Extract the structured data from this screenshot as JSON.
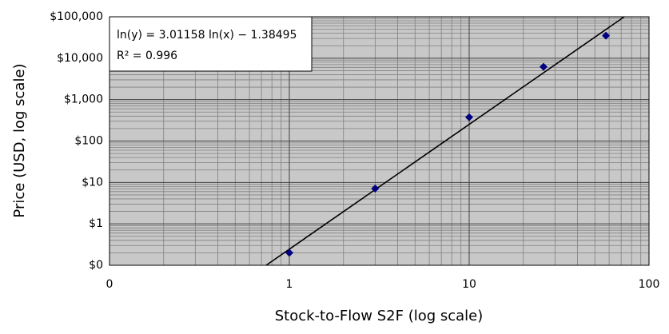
{
  "chart_data": {
    "type": "scatter",
    "x_label": "Stock-to-Flow S2F (log scale)",
    "y_label": "Price (USD, log scale)",
    "annotations": [
      "ln(y) = 3.01158 ln(x) − 1.38495",
      "R² = 0.996"
    ],
    "x": [
      1,
      3,
      10,
      25.9,
      57.6
    ],
    "values": [
      0.2,
      7.1,
      375,
      6200,
      35000
    ],
    "color": "#000080",
    "trendline": {
      "x": [
        0.743,
        72.8
      ],
      "values": [
        0.1,
        100000
      ],
      "color": "#000000"
    },
    "xlim": [
      0.1,
      100
    ],
    "ylim": [
      0.1,
      100000
    ],
    "xticks": [
      {
        "value": 0.1,
        "label": "0"
      },
      1,
      10,
      100
    ],
    "yticks": [
      {
        "value": 0.1,
        "label": "$0"
      },
      {
        "value": 1,
        "label": "$1"
      },
      {
        "value": 10,
        "label": "$10"
      },
      {
        "value": 100,
        "label": "$100"
      },
      {
        "value": 1000,
        "label": "$1,000"
      },
      {
        "value": 10000,
        "label": "$10,000"
      },
      {
        "value": 100000,
        "label": "$100,000"
      }
    ],
    "x_log": true,
    "y_log": true,
    "grid": true,
    "minor_grid": true,
    "plot_background": "#c8c8c8"
  }
}
